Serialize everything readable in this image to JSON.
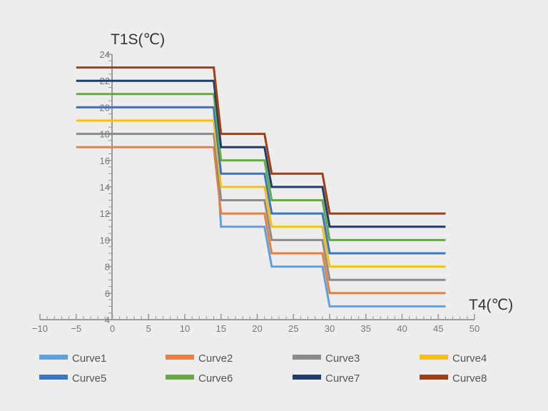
{
  "chart_data": {
    "type": "line",
    "step": true,
    "xlabel": "T4(℃)",
    "ylabel": "T1S(℃)",
    "xlim": [
      -10,
      50
    ],
    "ylim": [
      4,
      24
    ],
    "xticks": [
      -10,
      -5,
      0,
      5,
      10,
      15,
      20,
      25,
      30,
      35,
      40,
      45,
      50
    ],
    "xtick_labels": [
      "−10",
      "−5",
      "0",
      "5",
      "10",
      "15",
      "20",
      "25",
      "30",
      "35",
      "40",
      "45",
      "50"
    ],
    "yticks": [
      4,
      6,
      8,
      10,
      12,
      14,
      16,
      18,
      20,
      22,
      24
    ],
    "ytick_labels": [
      "4",
      "6",
      "8",
      "10",
      "12",
      "14",
      "16",
      "18",
      "20",
      "22",
      "24"
    ],
    "x": [
      -5,
      14,
      15,
      21,
      22,
      29,
      30,
      46
    ],
    "series": [
      {
        "name": "Curve1",
        "color": "#5ea1dc",
        "values": [
          20,
          20,
          11,
          11,
          8,
          8,
          5,
          5
        ]
      },
      {
        "name": "Curve2",
        "color": "#e8803f",
        "values": [
          17,
          17,
          12,
          12,
          9,
          9,
          6,
          6
        ]
      },
      {
        "name": "Curve3",
        "color": "#8b8b8b",
        "values": [
          18,
          18,
          13,
          13,
          10,
          10,
          7,
          7
        ]
      },
      {
        "name": "Curve4",
        "color": "#f5bf19",
        "values": [
          19,
          19,
          14,
          14,
          11,
          11,
          8,
          8
        ]
      },
      {
        "name": "Curve5",
        "color": "#3a76c4",
        "values": [
          20,
          20,
          15,
          15,
          12,
          12,
          9,
          9
        ]
      },
      {
        "name": "Curve6",
        "color": "#66a944",
        "values": [
          21,
          21,
          16,
          16,
          13,
          13,
          10,
          10
        ]
      },
      {
        "name": "Curve7",
        "color": "#1f3d6b",
        "values": [
          22,
          22,
          17,
          17,
          14,
          14,
          11,
          11
        ]
      },
      {
        "name": "Curve8",
        "color": "#9e4014",
        "values": [
          23,
          23,
          18,
          18,
          15,
          15,
          12,
          12
        ]
      }
    ],
    "legend_position": "bottom"
  }
}
